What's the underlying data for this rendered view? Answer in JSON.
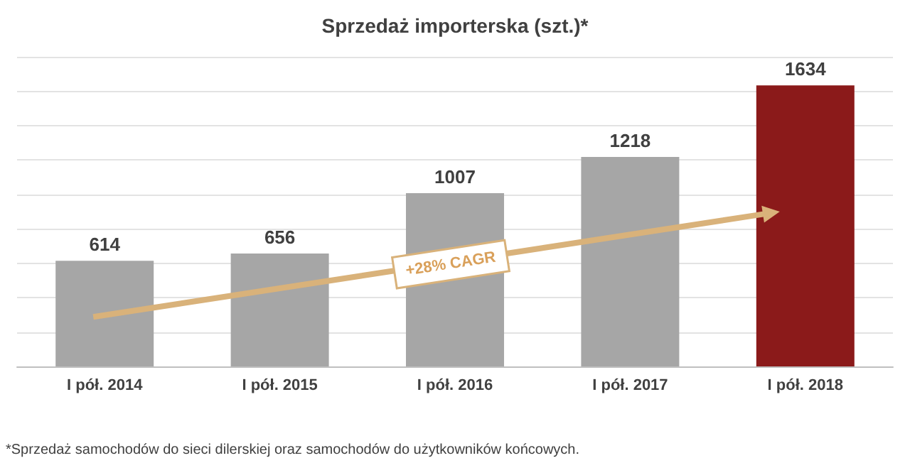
{
  "chart_data": {
    "type": "bar",
    "title": "Sprzedaż importerska (szt.)*",
    "categories": [
      "I pół. 2014",
      "I pół. 2015",
      "I pół. 2016",
      "I pół. 2017",
      "I pół. 2018"
    ],
    "values": [
      614,
      656,
      1007,
      1218,
      1634
    ],
    "colors": [
      "#a6a6a6",
      "#a6a6a6",
      "#a6a6a6",
      "#a6a6a6",
      "#8b1a1a"
    ],
    "ylim": [
      0,
      1800
    ],
    "yticks": [
      {
        "value": 0,
        "label": null
      },
      {
        "value": 200,
        "label": null
      },
      {
        "value": 400,
        "label": null
      },
      {
        "value": 600,
        "label": null
      },
      {
        "value": 800,
        "label": null
      },
      {
        "value": 1000,
        "label": null
      },
      {
        "value": 1200,
        "label": null
      },
      {
        "value": 1400,
        "label": null
      },
      {
        "value": 1600,
        "label": null
      },
      {
        "value": 1800,
        "label": null
      }
    ],
    "grid": "y",
    "tick_labels": "x",
    "data_labels": true,
    "annotations": [
      "+28% CAGR",
      "*Sprzedaż samochodów do sieci dilerskiej oraz samochodów do użytkowników końcowych."
    ]
  }
}
